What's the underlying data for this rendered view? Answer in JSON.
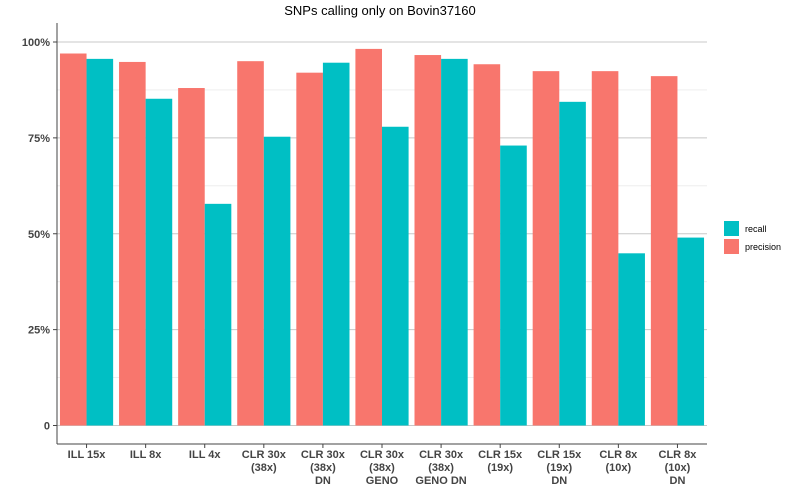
{
  "chart_data": {
    "type": "bar",
    "title": "SNPs calling only on Bovin37160",
    "xlabel": "",
    "ylabel": "",
    "ylim": [
      0,
      100
    ],
    "yticks": [
      "0",
      "25%",
      "50%",
      "75%",
      "100%"
    ],
    "ytick_values": [
      0,
      25,
      50,
      75,
      100
    ],
    "grid": true,
    "legend_position": "right",
    "categories": [
      [
        "ILL 15x"
      ],
      [
        "ILL 8x"
      ],
      [
        "ILL 4x"
      ],
      [
        "CLR 30x",
        "(38x)"
      ],
      [
        "CLR 30x",
        "(38x)",
        "DN"
      ],
      [
        "CLR 30x",
        "(38x)",
        "GENO"
      ],
      [
        "CLR 30x",
        "(38x)",
        "GENO DN"
      ],
      [
        "CLR 15x",
        "(19x)"
      ],
      [
        "CLR 15x",
        "(19x)",
        "DN"
      ],
      [
        "CLR 8x",
        "(10x)"
      ],
      [
        "CLR 8x",
        "(10x)",
        "DN"
      ]
    ],
    "series": [
      {
        "name": "precision",
        "color": "#F8766D",
        "values": [
          97.0,
          94.8,
          88.0,
          95.0,
          92.0,
          98.2,
          96.6,
          94.2,
          92.4,
          92.4,
          91.1
        ]
      },
      {
        "name": "recall",
        "color": "#00BFC4",
        "values": [
          95.6,
          85.2,
          57.8,
          75.3,
          94.6,
          77.9,
          95.6,
          73.0,
          84.4,
          44.9,
          49.0
        ]
      }
    ],
    "legend": [
      {
        "name": "recall",
        "color": "#00BFC4"
      },
      {
        "name": "precision",
        "color": "#F8766D"
      }
    ]
  }
}
